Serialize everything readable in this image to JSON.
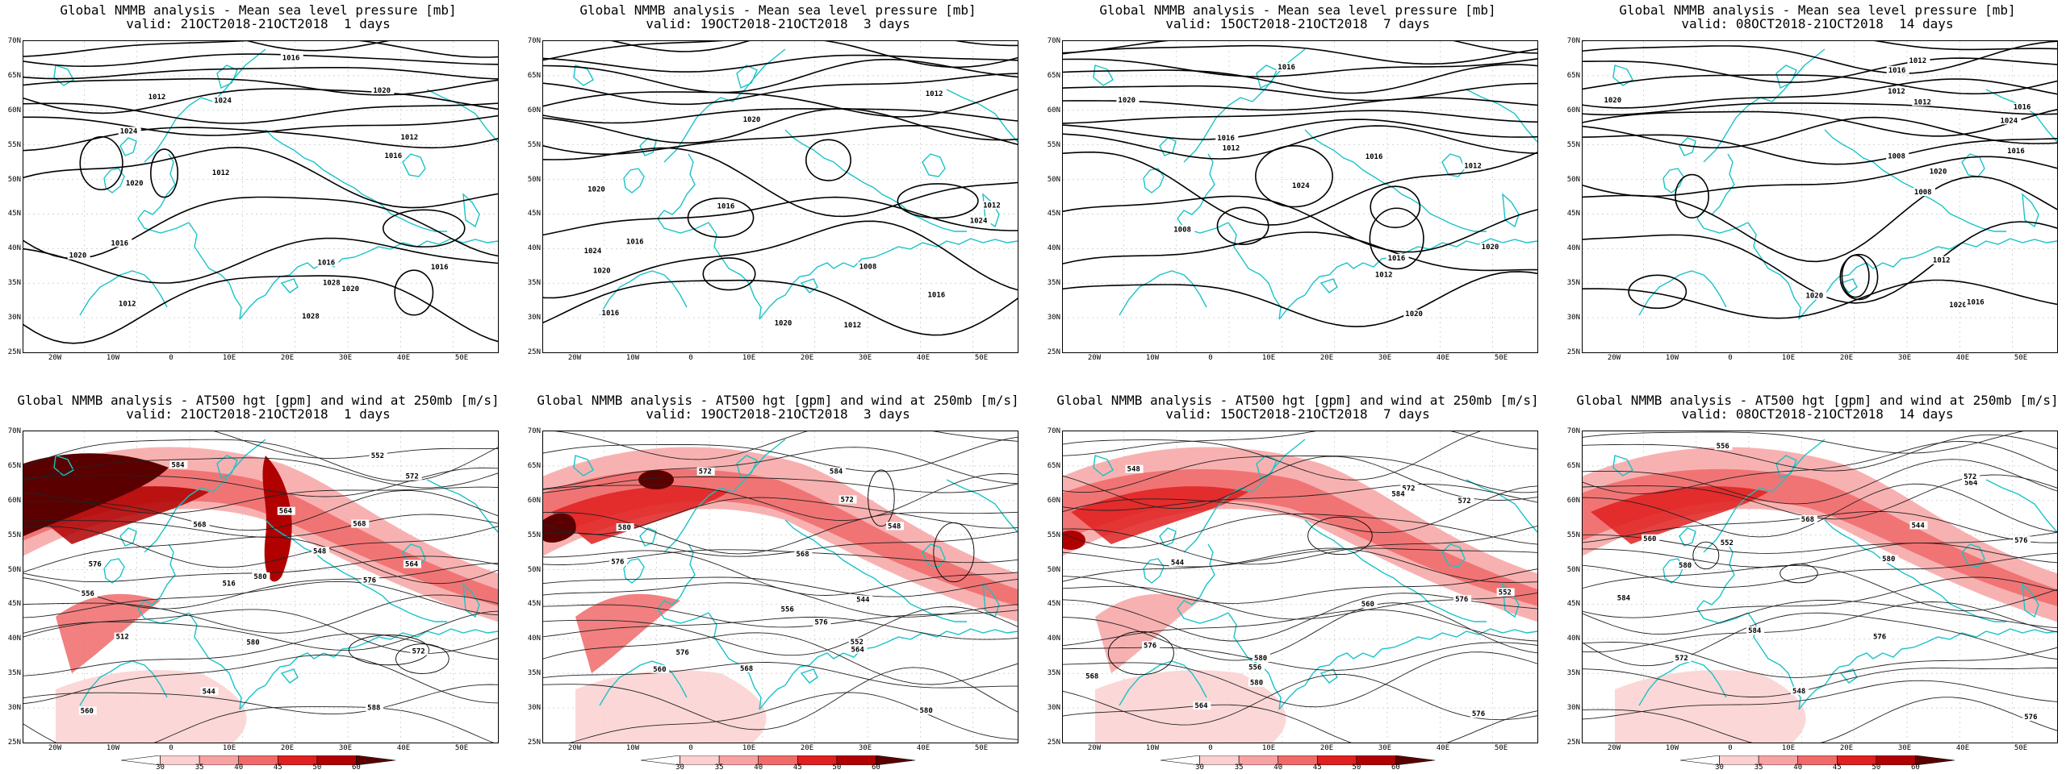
{
  "lat_ticks": [
    "70N",
    "65N",
    "60N",
    "55N",
    "50N",
    "45N",
    "40N",
    "35N",
    "30N",
    "25N"
  ],
  "lon_ticks": [
    "20W",
    "10W",
    "0",
    "10E",
    "20E",
    "30E",
    "40E",
    "50E"
  ],
  "colorbar": {
    "labels": [
      "30",
      "35",
      "40",
      "45",
      "50",
      "60"
    ],
    "colors": [
      "#ffffff",
      "#fbd0d0",
      "#f7a3a3",
      "#f06a6a",
      "#e02020",
      "#b00000",
      "#5a0000"
    ]
  },
  "colors": {
    "coast": "#19c3c8",
    "contour": "#000000",
    "grid": "#bdbdbd"
  },
  "panels_top": [
    {
      "title_l1": "Global NMMB analysis - Mean sea level pressure [mb]",
      "title_l2": "valid: 21OCT2018-21OCT2018  1 days",
      "contour_labels": [
        "1012",
        "1016",
        "1020",
        "1024",
        "1028",
        "1016",
        "1012",
        "1016",
        "1020",
        "1016",
        "1012",
        "1012",
        "1016",
        "1020",
        "1024",
        "1028",
        "1020"
      ]
    },
    {
      "title_l1": "Global NMMB analysis - Mean sea level pressure [mb]",
      "title_l2": "valid: 19OCT2018-21OCT2018  3 days",
      "contour_labels": [
        "1008",
        "1012",
        "1016",
        "1020",
        "1024",
        "1020",
        "1016",
        "1012",
        "1024",
        "1020",
        "1016",
        "1020",
        "1016",
        "1012"
      ]
    },
    {
      "title_l1": "Global NMMB analysis - Mean sea level pressure [mb]",
      "title_l2": "valid: 15OCT2018-21OCT2018  7 days",
      "contour_labels": [
        "1008",
        "1012",
        "1016",
        "1020",
        "1024",
        "1020",
        "1016",
        "1020",
        "1016",
        "1012",
        "1016",
        "1012"
      ]
    },
    {
      "title_l1": "Global NMMB analysis - Mean sea level pressure [mb]",
      "title_l2": "valid: 08OCT2018-21OCT2018  14 days",
      "contour_labels": [
        "1008",
        "1012",
        "1016",
        "1020",
        "1024",
        "1008",
        "1012",
        "1016",
        "1020",
        "1016",
        "1020",
        "1012",
        "1016",
        "1020",
        "1012"
      ]
    }
  ],
  "panels_bottom": [
    {
      "title_l1": "Global NMMB analysis - AT500 hgt [gpm] and wind at 250mb [m/s]",
      "title_l2": "valid: 21OCT2018-21OCT2018  1 days",
      "contour_labels": [
        "512",
        "516",
        "544",
        "548",
        "552",
        "556",
        "560",
        "564",
        "568",
        "572",
        "576",
        "580",
        "584",
        "588",
        "564",
        "568",
        "572",
        "576",
        "580"
      ]
    },
    {
      "title_l1": "Global NMMB analysis - AT500 hgt [gpm] and wind at 250mb [m/s]",
      "title_l2": "valid: 19OCT2018-21OCT2018  3 days",
      "contour_labels": [
        "544",
        "548",
        "552",
        "556",
        "560",
        "564",
        "568",
        "572",
        "576",
        "580",
        "568",
        "572",
        "576",
        "580",
        "584",
        "576"
      ]
    },
    {
      "title_l1": "Global NMMB analysis - AT500 hgt [gpm] and wind at 250mb [m/s]",
      "title_l2": "valid: 15OCT2018-21OCT2018  7 days",
      "contour_labels": [
        "544",
        "548",
        "552",
        "556",
        "560",
        "564",
        "568",
        "572",
        "576",
        "580",
        "584",
        "576",
        "572",
        "576",
        "580"
      ]
    },
    {
      "title_l1": "Global NMMB analysis - AT500 hgt [gpm] and wind at 250mb [m/s]",
      "title_l2": "valid: 08OCT2018-21OCT2018  14 days",
      "contour_labels": [
        "544",
        "548",
        "552",
        "556",
        "560",
        "564",
        "568",
        "572",
        "576",
        "580",
        "584",
        "576",
        "572",
        "576",
        "580",
        "584"
      ]
    }
  ]
}
